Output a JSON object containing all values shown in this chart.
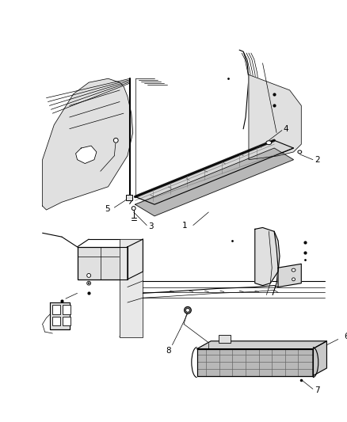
{
  "bg_color": "#ffffff",
  "line_color": "#000000",
  "fig_width": 4.38,
  "fig_height": 5.33,
  "dpi": 100,
  "label_fontsize": 7.5,
  "lw_thin": 0.5,
  "lw_med": 0.8,
  "lw_thick": 1.5,
  "lw_sill": 2.5,
  "gray_body": "#e0e0e0",
  "gray_sill": "#c8c8c8",
  "gray_dark": "#aaaaaa"
}
